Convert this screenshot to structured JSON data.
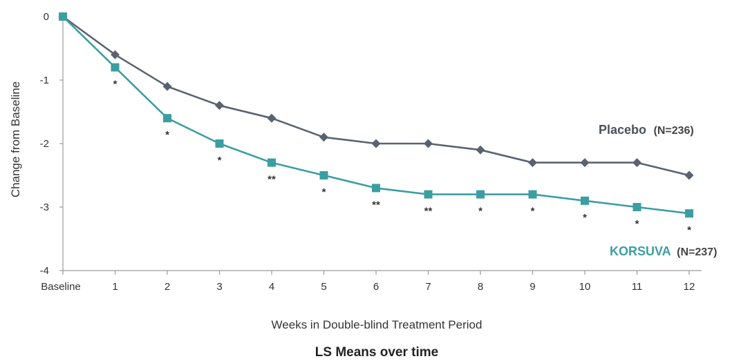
{
  "chart_data": {
    "type": "line",
    "title": "LS Means over time",
    "xlabel": "Weeks in Double-blind Treatment Period",
    "ylabel": "Change from Baseline",
    "categories": [
      "Baseline",
      "1",
      "2",
      "3",
      "4",
      "5",
      "6",
      "7",
      "8",
      "9",
      "10",
      "11",
      "12"
    ],
    "ylim": [
      -4,
      0
    ],
    "yticks": [
      "0",
      "-1",
      "-2",
      "-3",
      "-4"
    ],
    "grid": false,
    "series": [
      {
        "name": "Placebo",
        "n_label": "(N=236)",
        "color": "#5a6270",
        "marker": "diamond",
        "values": [
          0,
          -0.6,
          -1.1,
          -1.4,
          -1.6,
          -1.9,
          -2.0,
          -2.0,
          -2.1,
          -2.3,
          -2.3,
          -2.3,
          -2.5
        ]
      },
      {
        "name": "KORSUVA",
        "n_label": "(N=237)",
        "color": "#3b9ea1",
        "marker": "square",
        "values": [
          0,
          -0.8,
          -1.6,
          -2.0,
          -2.3,
          -2.5,
          -2.7,
          -2.8,
          -2.8,
          -2.8,
          -2.9,
          -3.0,
          -3.1
        ]
      }
    ],
    "significance": [
      "",
      "*",
      "*",
      "*",
      "**",
      "*",
      "**",
      "**",
      "*",
      "*",
      "*",
      "*",
      "*"
    ]
  }
}
